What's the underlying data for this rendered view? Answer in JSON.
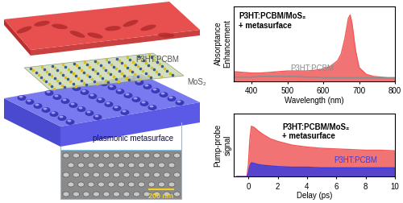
{
  "diagram": {
    "layers": [
      "P3HT:PCBM",
      "MoS₂",
      "plasmonic metasurface"
    ],
    "scale_bar": "200 nm"
  },
  "chart_data": [
    {
      "type": "area",
      "x_label": "Wavelength (nm)",
      "y_label": "Absorptance\nEnhancement",
      "x": [
        350,
        375,
        400,
        425,
        450,
        475,
        500,
        525,
        550,
        575,
        600,
        620,
        640,
        650,
        660,
        670,
        675,
        680,
        690,
        700,
        720,
        740,
        760,
        780,
        800
      ],
      "xlim": [
        350,
        800
      ],
      "xticks": [
        400,
        500,
        600,
        700,
        800
      ],
      "ylim": [
        0,
        1.1
      ],
      "yticks": [],
      "tick_labels": "x",
      "series": [
        {
          "name": "P3HT:PCBM/MoS₂\n+ metasurface",
          "color": "#f05a5a",
          "values": [
            0.14,
            0.13,
            0.12,
            0.12,
            0.13,
            0.14,
            0.15,
            0.15,
            0.15,
            0.16,
            0.18,
            0.22,
            0.3,
            0.4,
            0.62,
            0.92,
            0.97,
            0.85,
            0.45,
            0.2,
            0.1,
            0.07,
            0.06,
            0.05,
            0.05
          ]
        },
        {
          "name": "P3HT:PCBM",
          "color": "#8c8c8c",
          "type": "line",
          "values": [
            0.06,
            0.06,
            0.06,
            0.07,
            0.07,
            0.07,
            0.07,
            0.07,
            0.06,
            0.06,
            0.05,
            0.05,
            0.05,
            0.05,
            0.05,
            0.05,
            0.05,
            0.05,
            0.05,
            0.05,
            0.05,
            0.05,
            0.05,
            0.05,
            0.05
          ]
        }
      ]
    },
    {
      "type": "area",
      "x_label": "Delay (ps)",
      "y_label": "Pump-probe\nsignal",
      "x": [
        -0.8,
        -0.4,
        -0.1,
        0,
        0.1,
        0.2,
        0.4,
        0.7,
        1,
        1.5,
        2,
        3,
        4,
        5,
        6,
        7,
        8,
        9,
        10
      ],
      "xlim": [
        -1,
        10
      ],
      "xticks": [
        0,
        2,
        4,
        6,
        8,
        10
      ],
      "ylim": [
        0,
        1
      ],
      "yticks": [],
      "tick_labels": "x",
      "series": [
        {
          "name": "P3HT:PCBM/MoS₂\n+ metasurface",
          "color": "#f05a5a",
          "values": [
            0,
            0,
            0,
            0.2,
            0.6,
            0.8,
            0.78,
            0.72,
            0.67,
            0.6,
            0.56,
            0.5,
            0.47,
            0.45,
            0.44,
            0.43,
            0.42,
            0.42,
            0.41
          ]
        },
        {
          "name": "P3HT:PCBM",
          "color": "#3c3cdc",
          "values": [
            0,
            0,
            0,
            0.06,
            0.17,
            0.22,
            0.21,
            0.19,
            0.18,
            0.17,
            0.16,
            0.15,
            0.15,
            0.14,
            0.14,
            0.14,
            0.14,
            0.14,
            0.14
          ]
        }
      ]
    }
  ]
}
